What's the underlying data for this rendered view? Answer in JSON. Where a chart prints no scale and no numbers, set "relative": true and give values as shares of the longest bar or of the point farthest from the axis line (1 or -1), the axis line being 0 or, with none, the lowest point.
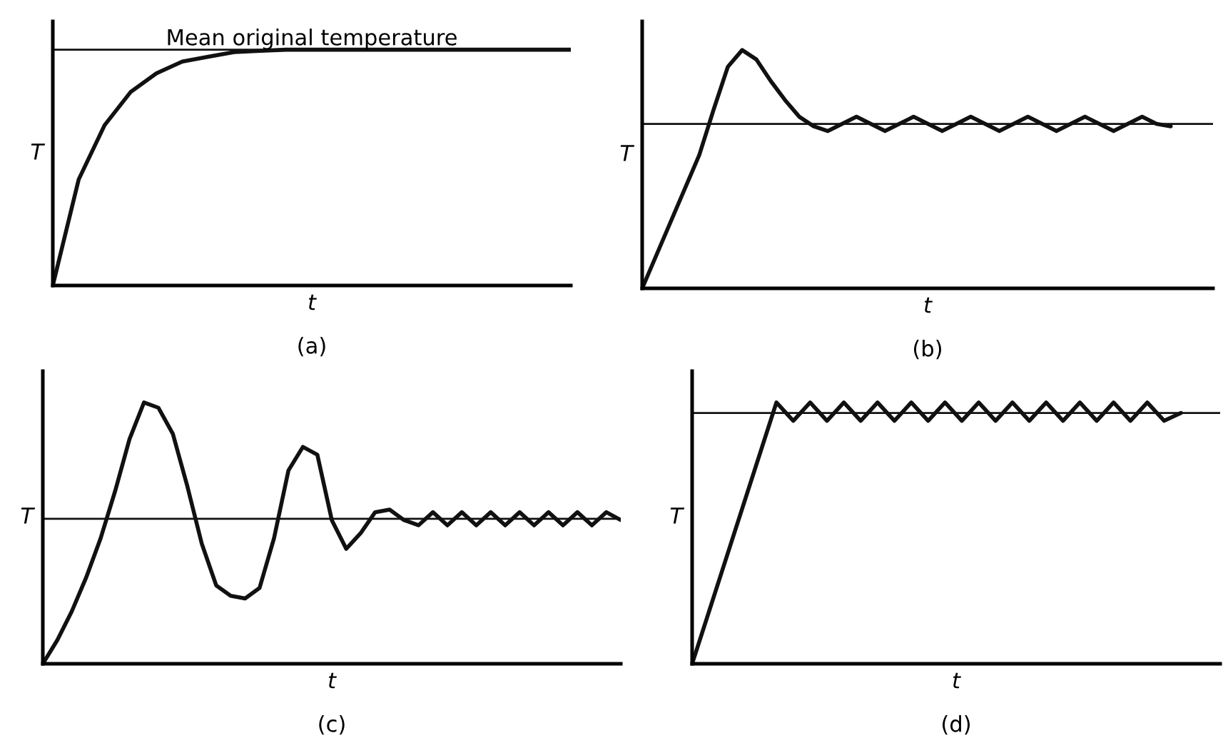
{
  "chart_data": [
    {
      "type": "line",
      "title": "(a)",
      "xlabel": "t",
      "ylabel": "T",
      "relative": true,
      "categories": [
        null,
        null,
        null,
        null,
        null,
        null,
        null,
        null,
        null,
        null,
        null,
        null,
        null,
        null,
        null,
        null,
        null,
        null,
        null,
        null,
        null
      ],
      "series": [
        {
          "color": "#111111",
          "values": [
            0,
            0.45,
            0.68,
            0.82,
            0.9,
            0.95,
            0.97,
            0.99,
            0.995,
            1,
            1,
            1,
            1,
            1,
            1,
            1,
            1,
            1,
            1,
            1,
            1
          ]
        }
      ],
      "ref_lines": [
        {
          "axis": "y",
          "value": 1,
          "label": "Mean original temperature"
        }
      ]
    },
    {
      "type": "line",
      "title": "(b)",
      "xlabel": "t",
      "ylabel": "T",
      "relative": true,
      "categories": [
        null,
        null,
        null,
        null,
        null,
        null,
        null,
        null,
        null,
        null,
        null,
        null,
        null,
        null,
        null,
        null,
        null,
        null,
        null,
        null,
        null,
        null,
        null,
        null,
        null,
        null,
        null,
        null,
        null,
        null,
        null,
        null,
        null,
        null,
        null,
        null,
        null,
        null
      ],
      "series": [
        {
          "color": "#111111",
          "values": [
            0,
            0.14,
            0.28,
            0.42,
            0.56,
            0.75,
            0.93,
            1,
            0.96,
            0.87,
            0.79,
            0.72,
            0.68,
            0.66,
            0.69,
            0.72,
            0.69,
            0.66,
            0.69,
            0.72,
            0.69,
            0.66,
            0.69,
            0.72,
            0.69,
            0.66,
            0.69,
            0.72,
            0.69,
            0.66,
            0.69,
            0.72,
            0.69,
            0.66,
            0.69,
            0.72,
            0.69,
            0.68
          ]
        }
      ],
      "ref_lines": [
        {
          "axis": "y",
          "value": 0.69
        }
      ]
    },
    {
      "type": "line",
      "title": "(c)",
      "xlabel": "t",
      "ylabel": "T",
      "relative": true,
      "categories": [
        null,
        null,
        null,
        null,
        null,
        null,
        null,
        null,
        null,
        null,
        null,
        null,
        null,
        null,
        null,
        null,
        null,
        null,
        null,
        null,
        null,
        null,
        null,
        null,
        null,
        null,
        null,
        null,
        null,
        null,
        null,
        null,
        null,
        null,
        null,
        null,
        null,
        null,
        null,
        null,
        null
      ],
      "series": [
        {
          "color": "#111111",
          "values": [
            0,
            0.09,
            0.2,
            0.33,
            0.48,
            0.66,
            0.86,
            1,
            0.98,
            0.88,
            0.68,
            0.46,
            0.3,
            0.26,
            0.25,
            0.29,
            0.48,
            0.74,
            0.83,
            0.8,
            0.55,
            0.44,
            0.5,
            0.58,
            0.59,
            0.55,
            0.53,
            0.58,
            0.53,
            0.58,
            0.53,
            0.58,
            0.53,
            0.58,
            0.53,
            0.58,
            0.53,
            0.58,
            0.53,
            0.58,
            0.55
          ]
        }
      ],
      "ref_lines": [
        {
          "axis": "y",
          "value": 0.555
        }
      ]
    },
    {
      "type": "line",
      "title": "(d)",
      "xlabel": "t",
      "ylabel": "T",
      "relative": true,
      "categories": [
        null,
        null,
        null,
        null,
        null,
        null,
        null,
        null,
        null,
        null,
        null,
        null,
        null,
        null,
        null,
        null,
        null,
        null,
        null,
        null,
        null,
        null,
        null,
        null,
        null,
        null,
        null,
        null,
        null,
        null
      ],
      "series": [
        {
          "color": "#111111",
          "values": [
            0,
            0.2,
            0.4,
            0.6,
            0.8,
            1,
            0.93,
            1,
            0.93,
            1,
            0.93,
            1,
            0.93,
            1,
            0.93,
            1,
            0.93,
            1,
            0.93,
            1,
            0.93,
            1,
            0.93,
            1,
            0.93,
            1,
            0.93,
            1,
            0.93,
            0.96
          ]
        }
      ],
      "ref_lines": [
        {
          "axis": "y",
          "value": 0.96
        }
      ]
    }
  ]
}
